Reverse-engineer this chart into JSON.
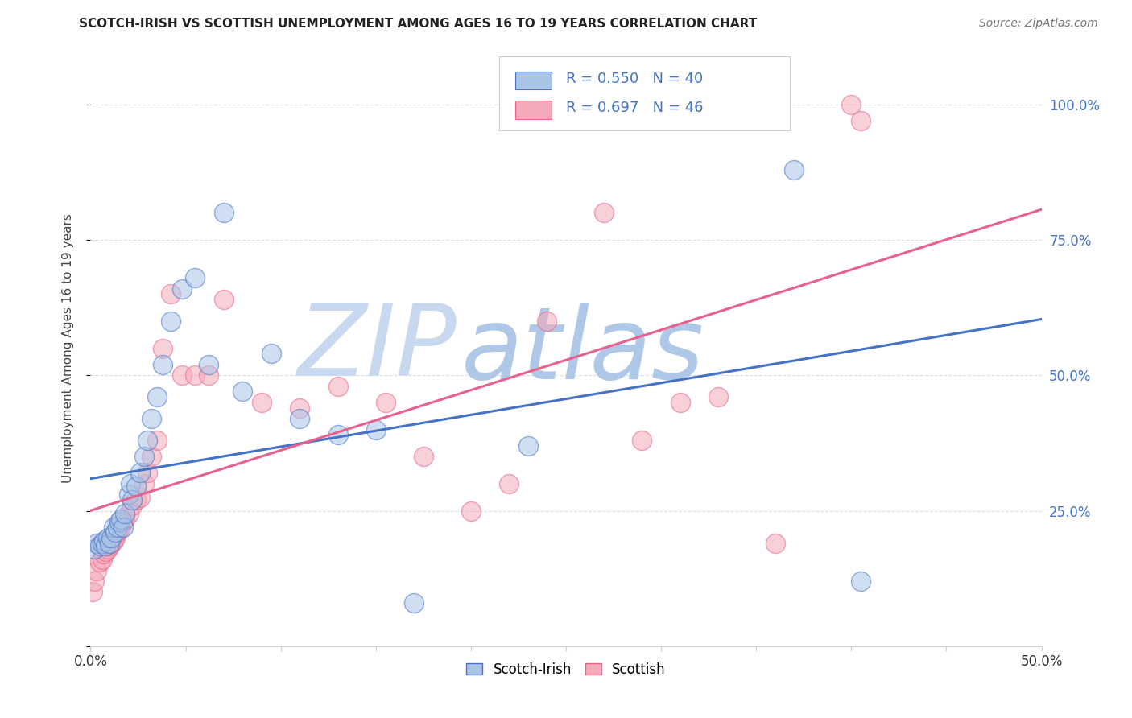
{
  "title": "SCOTCH-IRISH VS SCOTTISH UNEMPLOYMENT AMONG AGES 16 TO 19 YEARS CORRELATION CHART",
  "source": "Source: ZipAtlas.com",
  "ylabel": "Unemployment Among Ages 16 to 19 years",
  "xlim": [
    0.0,
    0.5
  ],
  "ylim": [
    0.0,
    1.1
  ],
  "background_color": "#ffffff",
  "grid_color": "#dddddd",
  "watermark_zip": "ZIP",
  "watermark_atlas": "atlas",
  "watermark_color_zip": "#c8d8ee",
  "watermark_color_atlas": "#b0c8e8",
  "scotch_irish_fill": "#aac4e8",
  "scottish_fill": "#f4aab8",
  "scotch_irish_edge": "#4472c4",
  "scottish_edge": "#e8608c",
  "blue_color": "#4472c4",
  "pink_line_color": "#e8608c",
  "R_si": 0.55,
  "N_si": 40,
  "R_sc": 0.697,
  "N_sc": 46,
  "scotch_irish_x": [
    0.002,
    0.003,
    0.005,
    0.006,
    0.007,
    0.008,
    0.009,
    0.01,
    0.011,
    0.012,
    0.013,
    0.014,
    0.015,
    0.016,
    0.017,
    0.018,
    0.02,
    0.021,
    0.022,
    0.024,
    0.026,
    0.028,
    0.03,
    0.032,
    0.035,
    0.038,
    0.042,
    0.048,
    0.055,
    0.062,
    0.07,
    0.08,
    0.095,
    0.11,
    0.13,
    0.15,
    0.17,
    0.23,
    0.37,
    0.405
  ],
  "scotch_irish_y": [
    0.18,
    0.19,
    0.185,
    0.19,
    0.195,
    0.185,
    0.2,
    0.19,
    0.2,
    0.22,
    0.21,
    0.22,
    0.23,
    0.235,
    0.22,
    0.245,
    0.28,
    0.3,
    0.27,
    0.295,
    0.32,
    0.35,
    0.38,
    0.42,
    0.46,
    0.52,
    0.6,
    0.66,
    0.68,
    0.52,
    0.8,
    0.47,
    0.54,
    0.42,
    0.39,
    0.4,
    0.08,
    0.37,
    0.88,
    0.12
  ],
  "scottish_x": [
    0.001,
    0.002,
    0.003,
    0.005,
    0.006,
    0.007,
    0.008,
    0.009,
    0.01,
    0.011,
    0.012,
    0.013,
    0.014,
    0.015,
    0.016,
    0.017,
    0.018,
    0.02,
    0.022,
    0.024,
    0.026,
    0.028,
    0.03,
    0.032,
    0.035,
    0.038,
    0.042,
    0.048,
    0.055,
    0.062,
    0.07,
    0.09,
    0.11,
    0.13,
    0.155,
    0.175,
    0.2,
    0.22,
    0.24,
    0.27,
    0.29,
    0.31,
    0.33,
    0.36,
    0.4,
    0.405
  ],
  "scottish_y": [
    0.1,
    0.12,
    0.14,
    0.155,
    0.16,
    0.17,
    0.175,
    0.18,
    0.185,
    0.19,
    0.195,
    0.2,
    0.21,
    0.215,
    0.22,
    0.23,
    0.235,
    0.245,
    0.26,
    0.27,
    0.275,
    0.3,
    0.32,
    0.35,
    0.38,
    0.55,
    0.65,
    0.5,
    0.5,
    0.5,
    0.64,
    0.45,
    0.44,
    0.48,
    0.45,
    0.35,
    0.25,
    0.3,
    0.6,
    0.8,
    0.38,
    0.45,
    0.46,
    0.19,
    1.0,
    0.97
  ],
  "marker_size": 300,
  "marker_alpha": 0.55,
  "edge_width": 1.0,
  "reg_lw": 2.2
}
